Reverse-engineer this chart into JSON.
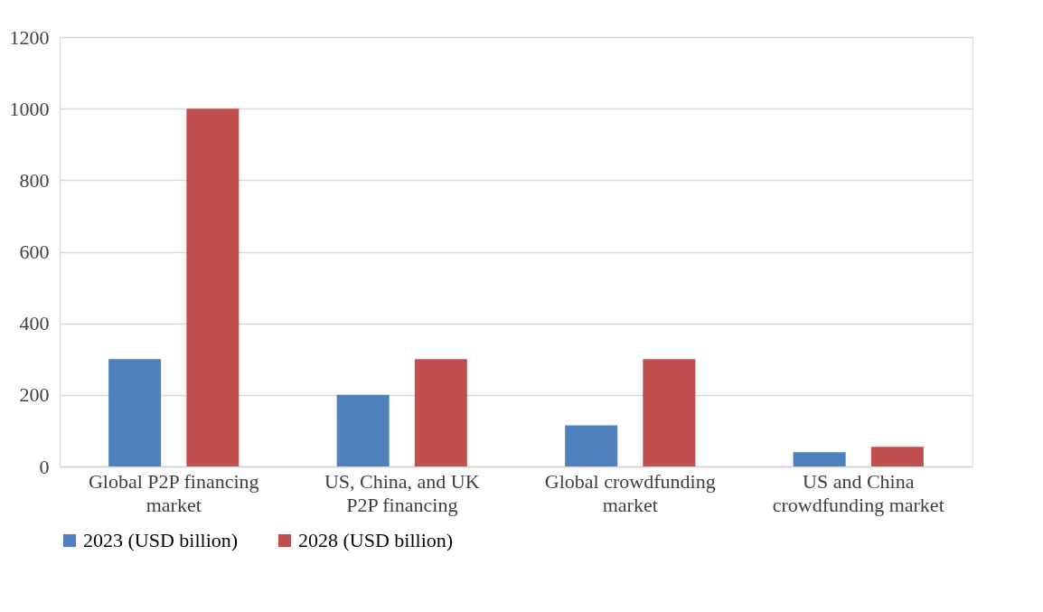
{
  "chart_data": {
    "type": "bar",
    "categories": [
      "Global P2P financing market",
      "US, China, and UK P2P financing",
      "Global crowdfunding market",
      "US and China crowdfunding market"
    ],
    "series": [
      {
        "name": "2023 (USD billion)",
        "color": "#4f81bd",
        "values": [
          300,
          200,
          115,
          40
        ]
      },
      {
        "name": "2028 (USD billion)",
        "color": "#c0504d",
        "values": [
          1000,
          300,
          300,
          55
        ]
      }
    ],
    "ylim": [
      0,
      1200
    ],
    "yticks": [
      0,
      200,
      400,
      600,
      800,
      1000,
      1200
    ],
    "grid": "y",
    "legend": "bottom"
  }
}
